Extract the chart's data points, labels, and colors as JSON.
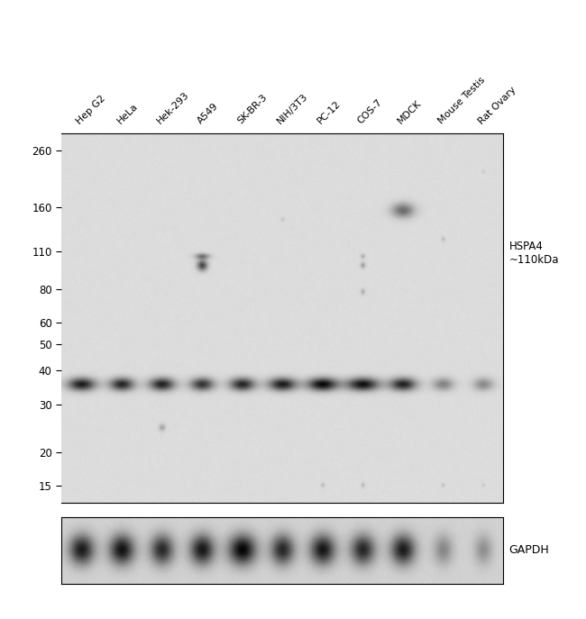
{
  "sample_labels": [
    "Hep G2",
    "HeLa",
    "Hek-293",
    "A549",
    "SK-BR-3",
    "NIH/3T3",
    "PC-12",
    "COS-7",
    "MDCK",
    "Mouse Testis",
    "Rat Ovary"
  ],
  "mw_markers": [
    260,
    160,
    110,
    80,
    60,
    50,
    40,
    30,
    20,
    15
  ],
  "gapdh_label": "GAPDH",
  "hspa4_label": "HSPA4\n~110kDa",
  "figure_bg": "#ffffff",
  "n_lanes": 11,
  "main_bg": "#d9d9d9",
  "gapdh_bg": "#c8c8c8",
  "band_intensities": [
    0.82,
    0.78,
    0.8,
    0.72,
    0.78,
    0.83,
    0.92,
    0.88,
    0.8,
    0.38,
    0.35
  ],
  "gapdh_intensities": [
    0.78,
    0.82,
    0.72,
    0.8,
    0.88,
    0.73,
    0.8,
    0.73,
    0.78,
    0.32,
    0.28
  ]
}
